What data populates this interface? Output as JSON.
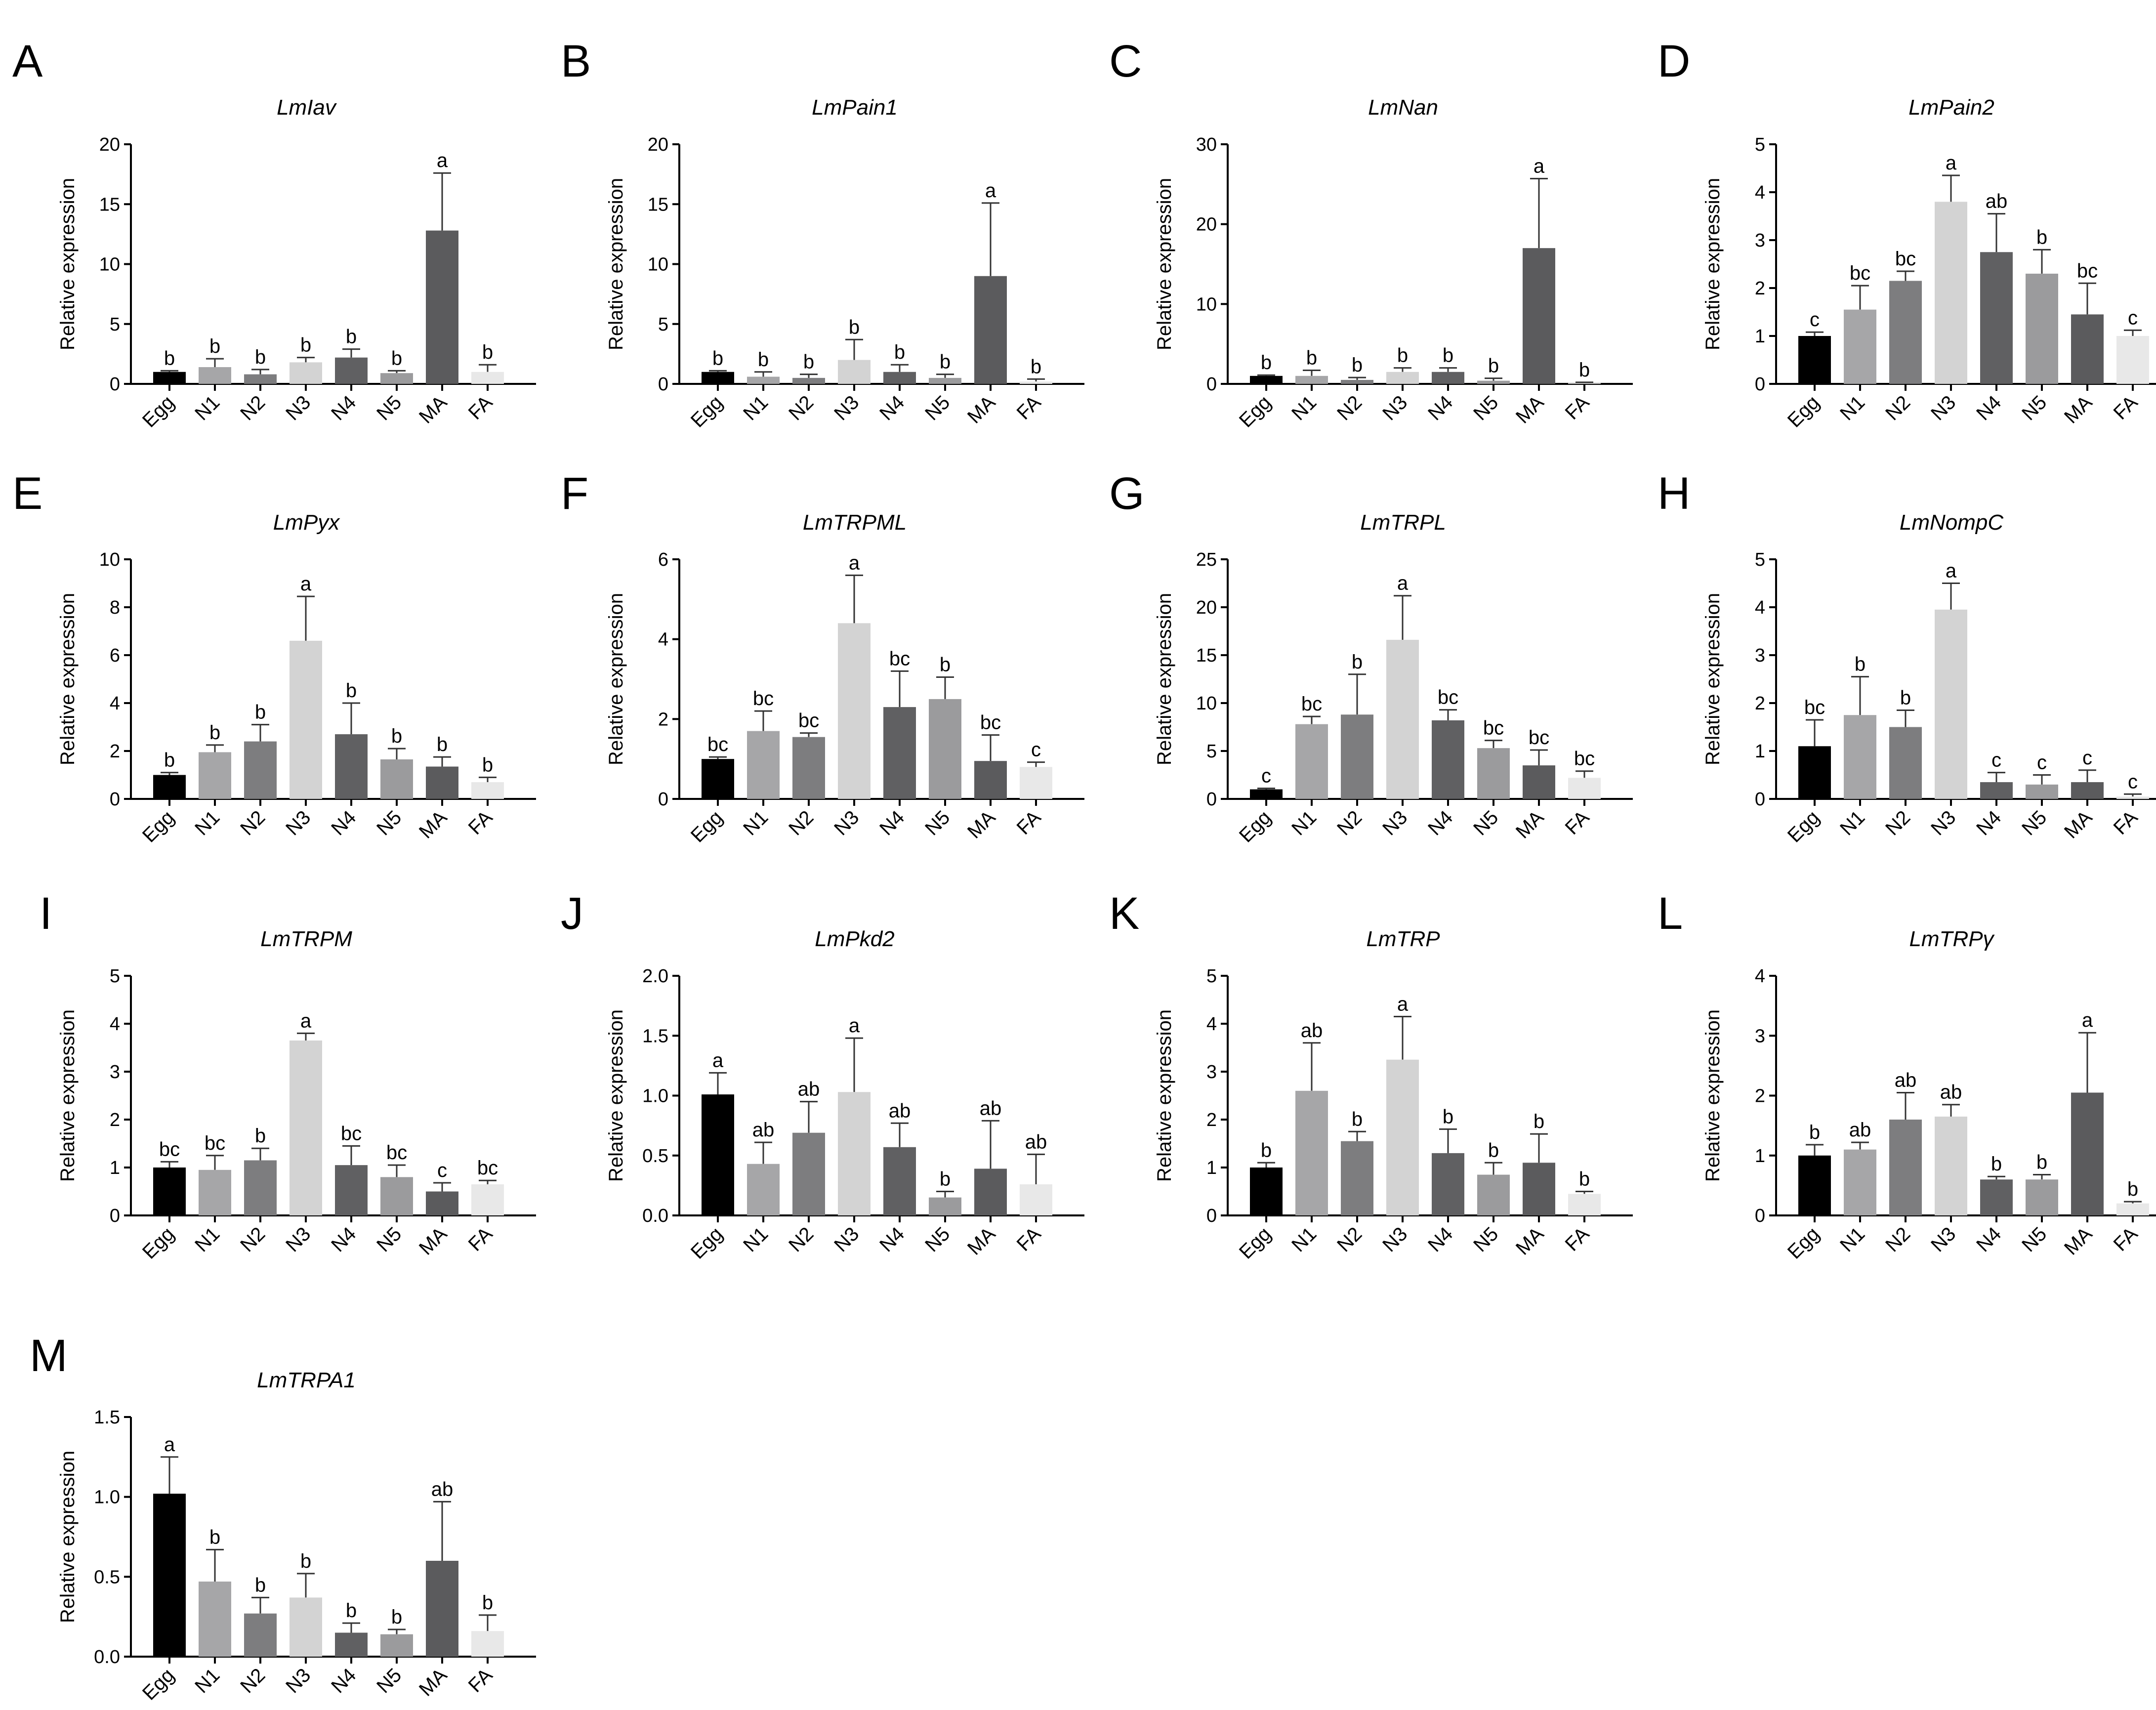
{
  "colors": {
    "egg": "#000000",
    "n1": "#a6a6a8",
    "n2": "#7d7d7f",
    "n3": "#d3d3d3",
    "n4": "#606062",
    "n5": "#9b9b9d",
    "ma": "#5b5b5d",
    "fa": "#e8e8e8"
  },
  "chart_data": [
    {
      "panel": "A",
      "type": "bar",
      "title": "LmIav",
      "ylabel": "Relative expression",
      "categories": [
        "Egg",
        "N1",
        "N2",
        "N3",
        "N4",
        "N5",
        "MA",
        "FA"
      ],
      "values": [
        1.0,
        1.4,
        0.8,
        1.8,
        2.2,
        0.9,
        12.8,
        1.0
      ],
      "errors": [
        0.1,
        0.7,
        0.4,
        0.4,
        0.7,
        0.2,
        4.8,
        0.6
      ],
      "significance": [
        "b",
        "b",
        "b",
        "b",
        "b",
        "b",
        "a",
        "b"
      ],
      "ylim": [
        0,
        20
      ],
      "yticks": [
        0,
        5,
        10,
        15,
        20
      ],
      "tick_labels": [
        "0",
        "5",
        "10",
        "15",
        "20"
      ]
    },
    {
      "panel": "B",
      "type": "bar",
      "title": "LmPain1",
      "ylabel": "Relative expression",
      "categories": [
        "Egg",
        "N1",
        "N2",
        "N3",
        "N4",
        "N5",
        "MA",
        "FA"
      ],
      "values": [
        1.0,
        0.6,
        0.5,
        2.0,
        1.0,
        0.5,
        9.0,
        0.2
      ],
      "errors": [
        0.1,
        0.4,
        0.3,
        1.7,
        0.6,
        0.3,
        6.1,
        0.2
      ],
      "significance": [
        "b",
        "b",
        "b",
        "b",
        "b",
        "b",
        "a",
        "b"
      ],
      "ylim": [
        0,
        20
      ],
      "yticks": [
        0,
        5,
        10,
        15,
        20
      ],
      "tick_labels": [
        "0",
        "5",
        "10",
        "15",
        "20"
      ]
    },
    {
      "panel": "C",
      "type": "bar",
      "title": "LmNan",
      "ylabel": "Relative expression",
      "categories": [
        "Egg",
        "N1",
        "N2",
        "N3",
        "N4",
        "N5",
        "MA",
        "FA"
      ],
      "values": [
        1.0,
        1.0,
        0.5,
        1.5,
        1.5,
        0.4,
        17.0,
        0.1
      ],
      "errors": [
        0.1,
        0.7,
        0.3,
        0.5,
        0.5,
        0.3,
        8.7,
        0.1
      ],
      "significance": [
        "b",
        "b",
        "b",
        "b",
        "b",
        "b",
        "a",
        "b"
      ],
      "ylim": [
        0,
        30
      ],
      "yticks": [
        0,
        10,
        20,
        30
      ],
      "tick_labels": [
        "0",
        "10",
        "20",
        "30"
      ]
    },
    {
      "panel": "D",
      "type": "bar",
      "title": "LmPain2",
      "ylabel": "Relative expression",
      "categories": [
        "Egg",
        "N1",
        "N2",
        "N3",
        "N4",
        "N5",
        "MA",
        "FA"
      ],
      "values": [
        1.0,
        1.55,
        2.15,
        3.8,
        2.75,
        2.3,
        1.45,
        1.0
      ],
      "errors": [
        0.08,
        0.5,
        0.2,
        0.55,
        0.8,
        0.5,
        0.65,
        0.12
      ],
      "significance": [
        "c",
        "bc",
        "bc",
        "a",
        "ab",
        "b",
        "bc",
        "c"
      ],
      "ylim": [
        0,
        5
      ],
      "yticks": [
        0,
        1,
        2,
        3,
        4,
        5
      ],
      "tick_labels": [
        "0",
        "1",
        "2",
        "3",
        "4",
        "5"
      ]
    },
    {
      "panel": "E",
      "type": "bar",
      "title": "LmPyx",
      "ylabel": "Relative expression",
      "categories": [
        "Egg",
        "N1",
        "N2",
        "N3",
        "N4",
        "N5",
        "MA",
        "FA"
      ],
      "values": [
        1.0,
        1.95,
        2.4,
        6.6,
        2.7,
        1.65,
        1.35,
        0.7
      ],
      "errors": [
        0.1,
        0.3,
        0.7,
        1.85,
        1.3,
        0.45,
        0.4,
        0.2
      ],
      "significance": [
        "b",
        "b",
        "b",
        "a",
        "b",
        "b",
        "b",
        "b"
      ],
      "ylim": [
        0,
        10
      ],
      "yticks": [
        0,
        2,
        4,
        6,
        8,
        10
      ],
      "tick_labels": [
        "0",
        "2",
        "4",
        "6",
        "8",
        "10"
      ]
    },
    {
      "panel": "F",
      "type": "bar",
      "title": "LmTRPML",
      "ylabel": "Relative expression",
      "categories": [
        "Egg",
        "N1",
        "N2",
        "N3",
        "N4",
        "N5",
        "MA",
        "FA"
      ],
      "values": [
        1.0,
        1.7,
        1.55,
        4.4,
        2.3,
        2.5,
        0.95,
        0.8
      ],
      "errors": [
        0.05,
        0.5,
        0.1,
        1.2,
        0.9,
        0.55,
        0.65,
        0.12
      ],
      "significance": [
        "bc",
        "bc",
        "bc",
        "a",
        "bc",
        "b",
        "bc",
        "c"
      ],
      "ylim": [
        0,
        6
      ],
      "yticks": [
        0,
        2,
        4,
        6
      ],
      "tick_labels": [
        "0",
        "2",
        "4",
        "6"
      ]
    },
    {
      "panel": "G",
      "type": "bar",
      "title": "LmTRPL",
      "ylabel": "Relative expression",
      "categories": [
        "Egg",
        "N1",
        "N2",
        "N3",
        "N4",
        "N5",
        "MA",
        "FA"
      ],
      "values": [
        1.0,
        7.8,
        8.8,
        16.6,
        8.2,
        5.3,
        3.5,
        2.2
      ],
      "errors": [
        0.1,
        0.8,
        4.2,
        4.6,
        1.1,
        0.8,
        1.6,
        0.7
      ],
      "significance": [
        "c",
        "bc",
        "b",
        "a",
        "bc",
        "bc",
        "bc",
        "bc"
      ],
      "ylim": [
        0,
        25
      ],
      "yticks": [
        0,
        5,
        10,
        15,
        20,
        25
      ],
      "tick_labels": [
        "0",
        "5",
        "10",
        "15",
        "20",
        "25"
      ]
    },
    {
      "panel": "H",
      "type": "bar",
      "title": "LmNompC",
      "ylabel": "Relative expression",
      "categories": [
        "Egg",
        "N1",
        "N2",
        "N3",
        "N4",
        "N5",
        "MA",
        "FA"
      ],
      "values": [
        1.1,
        1.75,
        1.5,
        3.95,
        0.35,
        0.3,
        0.35,
        0.05
      ],
      "errors": [
        0.55,
        0.8,
        0.35,
        0.55,
        0.2,
        0.2,
        0.25,
        0.05
      ],
      "significance": [
        "bc",
        "b",
        "b",
        "a",
        "c",
        "c",
        "c",
        "c"
      ],
      "ylim": [
        0,
        5
      ],
      "yticks": [
        0,
        1,
        2,
        3,
        4,
        5
      ],
      "tick_labels": [
        "0",
        "1",
        "2",
        "3",
        "4",
        "5"
      ]
    },
    {
      "panel": "I",
      "type": "bar",
      "title": "LmTRPM",
      "ylabel": "Relative expression",
      "categories": [
        "Egg",
        "N1",
        "N2",
        "N3",
        "N4",
        "N5",
        "MA",
        "FA"
      ],
      "values": [
        1.0,
        0.95,
        1.15,
        3.65,
        1.05,
        0.8,
        0.5,
        0.65
      ],
      "errors": [
        0.12,
        0.3,
        0.25,
        0.15,
        0.4,
        0.25,
        0.18,
        0.08
      ],
      "significance": [
        "bc",
        "bc",
        "b",
        "a",
        "bc",
        "bc",
        "c",
        "bc"
      ],
      "ylim": [
        0,
        5
      ],
      "yticks": [
        0,
        1,
        2,
        3,
        4,
        5
      ],
      "tick_labels": [
        "0",
        "1",
        "2",
        "3",
        "4",
        "5"
      ]
    },
    {
      "panel": "J",
      "type": "bar",
      "title": "LmPkd2",
      "ylabel": "Relative expression",
      "categories": [
        "Egg",
        "N1",
        "N2",
        "N3",
        "N4",
        "N5",
        "MA",
        "FA"
      ],
      "values": [
        1.01,
        0.43,
        0.69,
        1.03,
        0.57,
        0.15,
        0.39,
        0.26
      ],
      "errors": [
        0.18,
        0.18,
        0.26,
        0.45,
        0.2,
        0.05,
        0.4,
        0.25
      ],
      "significance": [
        "a",
        "ab",
        "ab",
        "a",
        "ab",
        "b",
        "ab",
        "ab"
      ],
      "ylim": [
        0,
        2
      ],
      "yticks": [
        0,
        0.5,
        1,
        1.5,
        2
      ],
      "tick_labels": [
        "0.0",
        "0.5",
        "1.0",
        "1.5",
        "2.0"
      ]
    },
    {
      "panel": "K",
      "type": "bar",
      "title": "LmTRP",
      "ylabel": "Relative expression",
      "categories": [
        "Egg",
        "N1",
        "N2",
        "N3",
        "N4",
        "N5",
        "MA",
        "FA"
      ],
      "values": [
        1.0,
        2.6,
        1.55,
        3.25,
        1.3,
        0.85,
        1.1,
        0.45
      ],
      "errors": [
        0.1,
        1.0,
        0.2,
        0.9,
        0.5,
        0.25,
        0.6,
        0.05
      ],
      "significance": [
        "b",
        "ab",
        "b",
        "a",
        "b",
        "b",
        "b",
        "b"
      ],
      "ylim": [
        0,
        5
      ],
      "yticks": [
        0,
        1,
        2,
        3,
        4,
        5
      ],
      "tick_labels": [
        "0",
        "1",
        "2",
        "3",
        "4",
        "5"
      ]
    },
    {
      "panel": "L",
      "type": "bar",
      "title": "LmTRPγ",
      "ylabel": "Relative expression",
      "categories": [
        "Egg",
        "N1",
        "N2",
        "N3",
        "N4",
        "N5",
        "MA",
        "FA"
      ],
      "values": [
        1.0,
        1.1,
        1.6,
        1.65,
        0.6,
        0.6,
        2.05,
        0.2
      ],
      "errors": [
        0.18,
        0.12,
        0.45,
        0.2,
        0.05,
        0.08,
        1.0,
        0.03
      ],
      "significance": [
        "b",
        "ab",
        "ab",
        "ab",
        "b",
        "b",
        "a",
        "b"
      ],
      "ylim": [
        0,
        4
      ],
      "yticks": [
        0,
        1,
        2,
        3,
        4
      ],
      "tick_labels": [
        "0",
        "1",
        "2",
        "3",
        "4"
      ]
    },
    {
      "panel": "M",
      "type": "bar",
      "title": "LmTRPA1",
      "ylabel": "Relative expression",
      "categories": [
        "Egg",
        "N1",
        "N2",
        "N3",
        "N4",
        "N5",
        "MA",
        "FA"
      ],
      "values": [
        1.02,
        0.47,
        0.27,
        0.37,
        0.15,
        0.14,
        0.6,
        0.16
      ],
      "errors": [
        0.23,
        0.2,
        0.1,
        0.15,
        0.06,
        0.03,
        0.37,
        0.1
      ],
      "significance": [
        "a",
        "b",
        "b",
        "b",
        "b",
        "b",
        "ab",
        "b"
      ],
      "ylim": [
        0,
        1.5
      ],
      "yticks": [
        0,
        0.5,
        1,
        1.5
      ],
      "tick_labels": [
        "0.0",
        "0.5",
        "1.0",
        "1.5"
      ]
    }
  ]
}
